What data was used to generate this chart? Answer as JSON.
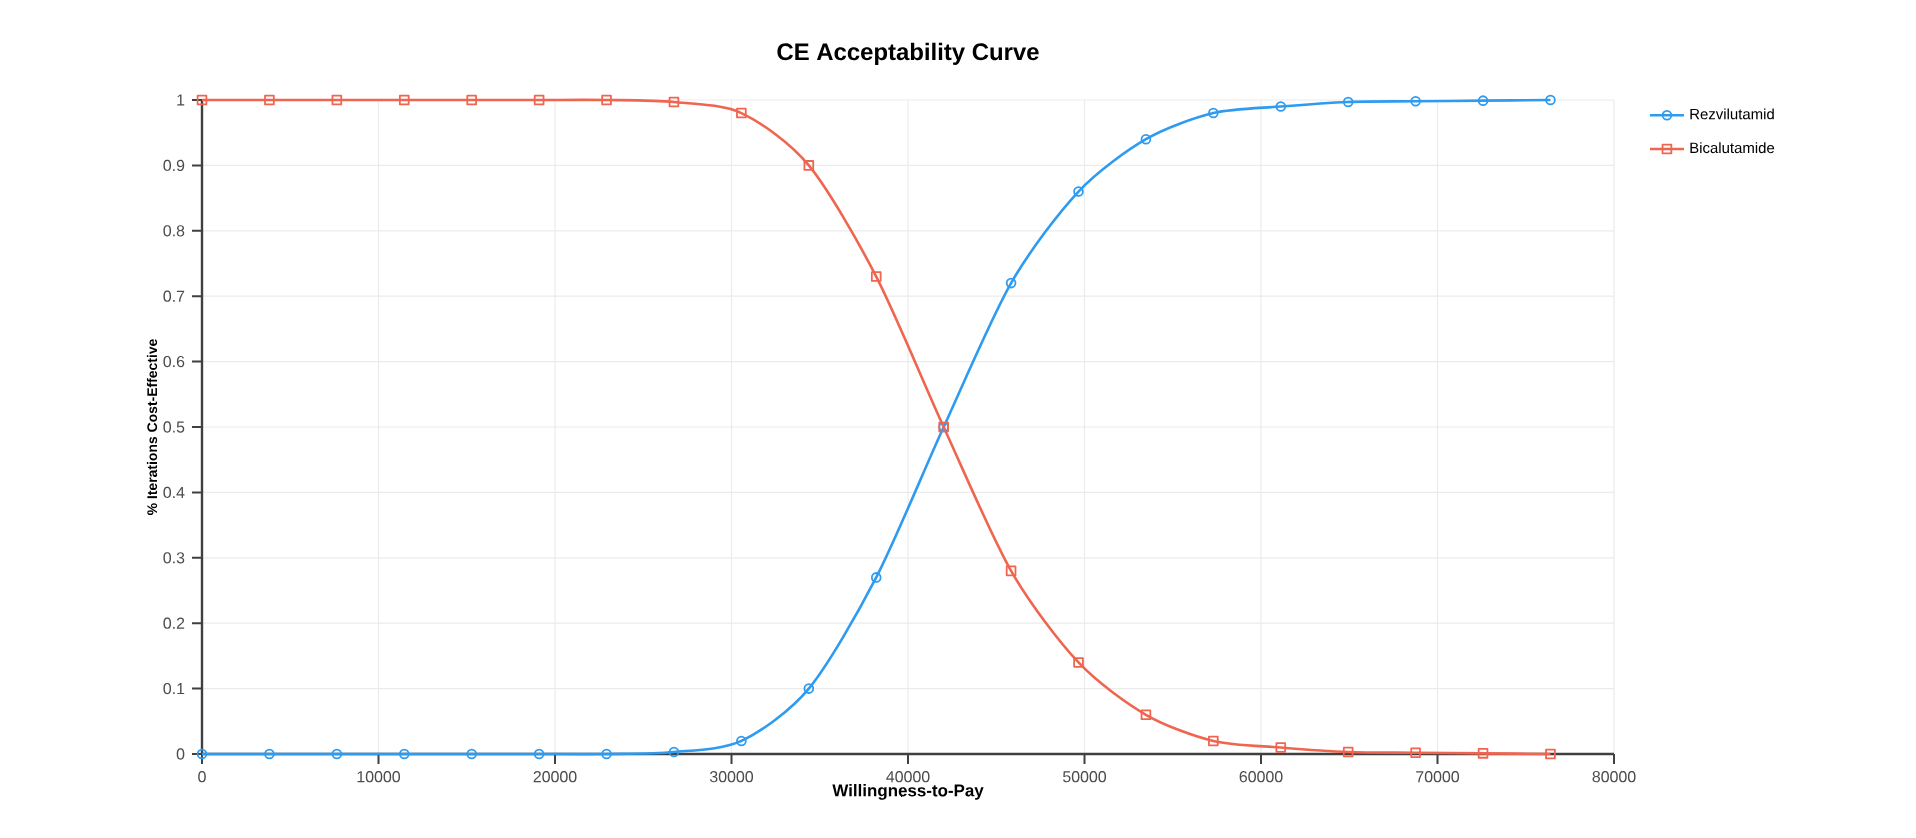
{
  "chart_data": {
    "type": "line",
    "title": "CE Acceptability Curve",
    "xlabel": "Willingness-to-Pay",
    "ylabel": "% Iterations Cost-Effective",
    "x": [
      0,
      3820,
      7640,
      11460,
      15280,
      19100,
      22920,
      26740,
      30560,
      34380,
      38200,
      42020,
      45840,
      49660,
      53480,
      57300,
      61120,
      64940,
      68760,
      72580,
      76400
    ],
    "series": [
      {
        "name": "Rezvilutamid",
        "color": "#2e9bf0",
        "marker": "circle",
        "values": [
          0,
          0,
          0,
          0,
          0,
          0,
          0,
          0.003,
          0.02,
          0.1,
          0.27,
          0.5,
          0.72,
          0.86,
          0.94,
          0.98,
          0.99,
          0.997,
          0.998,
          0.999,
          1
        ]
      },
      {
        "name": "Bicalutamide",
        "color": "#f0654f",
        "marker": "square",
        "values": [
          1,
          1,
          1,
          1,
          1,
          1,
          1,
          0.997,
          0.98,
          0.9,
          0.73,
          0.5,
          0.28,
          0.14,
          0.06,
          0.02,
          0.01,
          0.003,
          0.002,
          0.001,
          0
        ]
      }
    ],
    "xlim": [
      0,
      80000
    ],
    "ylim": [
      0,
      1
    ],
    "xticks": [
      0,
      10000,
      20000,
      30000,
      40000,
      50000,
      60000,
      70000,
      80000
    ],
    "yticks": [
      0,
      0.1,
      0.2,
      0.3,
      0.4,
      0.5,
      0.6,
      0.7,
      0.8,
      0.9,
      1
    ],
    "grid": true,
    "legend": "top right",
    "line_style": "solid"
  }
}
